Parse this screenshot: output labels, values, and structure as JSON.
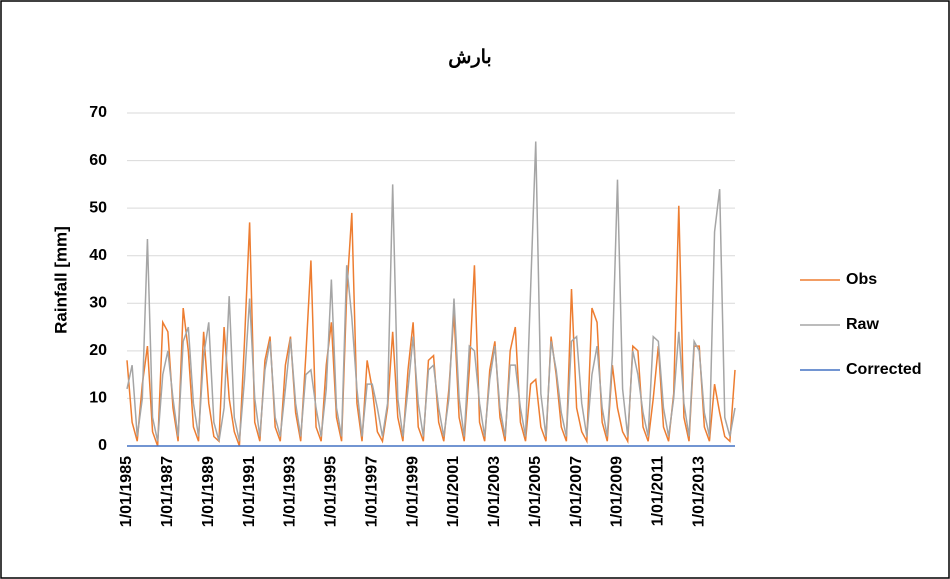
{
  "chart_data": {
    "type": "line",
    "title": "بارش",
    "y_label": "Rainfall [mm]",
    "x": [
      1985,
      1985.25,
      1985.5,
      1985.75,
      1986,
      1986.25,
      1986.5,
      1986.75,
      1987,
      1987.25,
      1987.5,
      1987.75,
      1988,
      1988.25,
      1988.5,
      1988.75,
      1989,
      1989.25,
      1989.5,
      1989.75,
      1990,
      1990.25,
      1990.5,
      1990.75,
      1991,
      1991.25,
      1991.5,
      1991.75,
      1992,
      1992.25,
      1992.5,
      1992.75,
      1993,
      1993.25,
      1993.5,
      1993.75,
      1994,
      1994.25,
      1994.5,
      1994.75,
      1995,
      1995.25,
      1995.5,
      1995.75,
      1996,
      1996.25,
      1996.5,
      1996.75,
      1997,
      1997.25,
      1997.5,
      1997.75,
      1998,
      1998.25,
      1998.5,
      1998.75,
      1999,
      1999.25,
      1999.5,
      1999.75,
      2000,
      2000.25,
      2000.5,
      2000.75,
      2001,
      2001.25,
      2001.5,
      2001.75,
      2002,
      2002.25,
      2002.5,
      2002.75,
      2003,
      2003.25,
      2003.5,
      2003.75,
      2004,
      2004.25,
      2004.5,
      2004.75,
      2005,
      2005.25,
      2005.5,
      2005.75,
      2006,
      2006.25,
      2006.5,
      2006.75,
      2007,
      2007.25,
      2007.5,
      2007.75,
      2008,
      2008.25,
      2008.5,
      2008.75,
      2009,
      2009.25,
      2009.5,
      2009.75,
      2010,
      2010.25,
      2010.5,
      2010.75,
      2011,
      2011.25,
      2011.5,
      2011.75,
      2012,
      2012.25,
      2012.5,
      2012.75,
      2013,
      2013.25,
      2013.5,
      2013.75,
      2014,
      2014.25,
      2014.5,
      2014.75
    ],
    "series": [
      {
        "name": "Obs",
        "color": "#ed7d31",
        "values": [
          18,
          5,
          1,
          13,
          21,
          3,
          0,
          26,
          24,
          8,
          1,
          29,
          20,
          4,
          1,
          24,
          9,
          2,
          1,
          25,
          10,
          3,
          0,
          22,
          47,
          5,
          1,
          18,
          23,
          4,
          1,
          17,
          23,
          7,
          1,
          19,
          39,
          4,
          1,
          17,
          26,
          6,
          1,
          32,
          49,
          9,
          1,
          18,
          12,
          3,
          1,
          8,
          24,
          6,
          1,
          16,
          26,
          4,
          1,
          18,
          19,
          5,
          1,
          12,
          28,
          6,
          1,
          16,
          38,
          5,
          1,
          16,
          22,
          6,
          1,
          20,
          25,
          5,
          1,
          13,
          14,
          4,
          1,
          23,
          15,
          4,
          1,
          33,
          8,
          3,
          1,
          29,
          26,
          5,
          1,
          17,
          8,
          3,
          1,
          21,
          20,
          4,
          1,
          10,
          21,
          4,
          1,
          11,
          50.5,
          6,
          1,
          21,
          21,
          4,
          1,
          13,
          7,
          2,
          1,
          16
        ]
      },
      {
        "name": "Raw",
        "color": "#a5a5a5",
        "values": [
          12,
          17,
          2,
          10,
          43.5,
          6,
          1,
          15,
          20,
          10,
          2,
          22,
          25,
          9,
          2,
          19,
          26,
          5,
          1,
          8,
          31.5,
          6,
          1,
          14,
          31,
          10,
          2,
          16,
          22,
          6,
          2,
          12,
          22.5,
          9,
          2,
          15,
          16,
          8,
          2,
          12,
          35,
          8,
          2,
          38,
          27,
          12,
          2,
          13,
          13,
          8,
          2,
          9,
          55,
          10,
          2,
          12,
          23,
          9,
          2,
          16,
          17,
          8,
          2,
          10,
          31,
          10,
          2,
          21,
          20,
          9,
          2,
          14,
          21,
          8,
          2,
          17,
          17,
          8,
          2,
          33,
          64,
          11,
          2,
          22,
          16,
          7,
          2,
          22,
          23,
          9,
          2,
          15,
          21,
          8,
          2,
          19,
          56,
          12,
          2,
          20,
          15,
          7,
          2,
          23,
          22,
          8,
          2,
          10,
          24,
          9,
          2,
          22,
          20,
          7,
          2,
          45,
          54,
          6,
          2,
          8
        ]
      },
      {
        "name": "Corrected",
        "color": "#4472c4",
        "values": [
          0,
          0,
          0,
          0,
          0,
          0,
          0,
          0,
          0,
          0,
          0,
          0,
          0,
          0,
          0,
          0,
          0,
          0,
          0,
          0,
          0,
          0,
          0,
          0,
          0,
          0,
          0,
          0,
          0,
          0,
          0,
          0,
          0,
          0,
          0,
          0,
          0,
          0,
          0,
          0,
          0,
          0,
          0,
          0,
          0,
          0,
          0,
          0,
          0,
          0,
          0,
          0,
          0,
          0,
          0,
          0,
          0,
          0,
          0,
          0,
          0,
          0,
          0,
          0,
          0,
          0,
          0,
          0,
          0,
          0,
          0,
          0,
          0,
          0,
          0,
          0,
          0,
          0,
          0,
          0,
          0,
          0,
          0,
          0,
          0,
          0,
          0,
          0,
          0,
          0,
          0,
          0,
          0,
          0,
          0,
          0,
          0,
          0,
          0,
          0,
          0,
          0,
          0,
          0,
          0,
          0,
          0,
          0,
          0,
          0,
          0,
          0,
          0,
          0,
          0,
          0,
          0,
          0,
          0,
          0
        ]
      }
    ],
    "xlim": [
      1985,
      2014.75
    ],
    "xticks": [
      {
        "value": 1985,
        "label": "1/01/1985"
      },
      {
        "value": 1987,
        "label": "1/01/1987"
      },
      {
        "value": 1989,
        "label": "1/01/1989"
      },
      {
        "value": 1991,
        "label": "1/01/1991"
      },
      {
        "value": 1993,
        "label": "1/01/1993"
      },
      {
        "value": 1995,
        "label": "1/01/1995"
      },
      {
        "value": 1997,
        "label": "1/01/1997"
      },
      {
        "value": 1999,
        "label": "1/01/1999"
      },
      {
        "value": 2001,
        "label": "1/01/2001"
      },
      {
        "value": 2003,
        "label": "1/01/2003"
      },
      {
        "value": 2005,
        "label": "1/01/2005"
      },
      {
        "value": 2007,
        "label": "1/01/2007"
      },
      {
        "value": 2009,
        "label": "1/01/2009"
      },
      {
        "value": 2011,
        "label": "1/01/2011"
      },
      {
        "value": 2013,
        "label": "1/01/2013"
      }
    ],
    "ylim": [
      0,
      70
    ],
    "yticks": [
      0,
      10,
      20,
      30,
      40,
      50,
      60,
      70
    ],
    "grid": true
  }
}
